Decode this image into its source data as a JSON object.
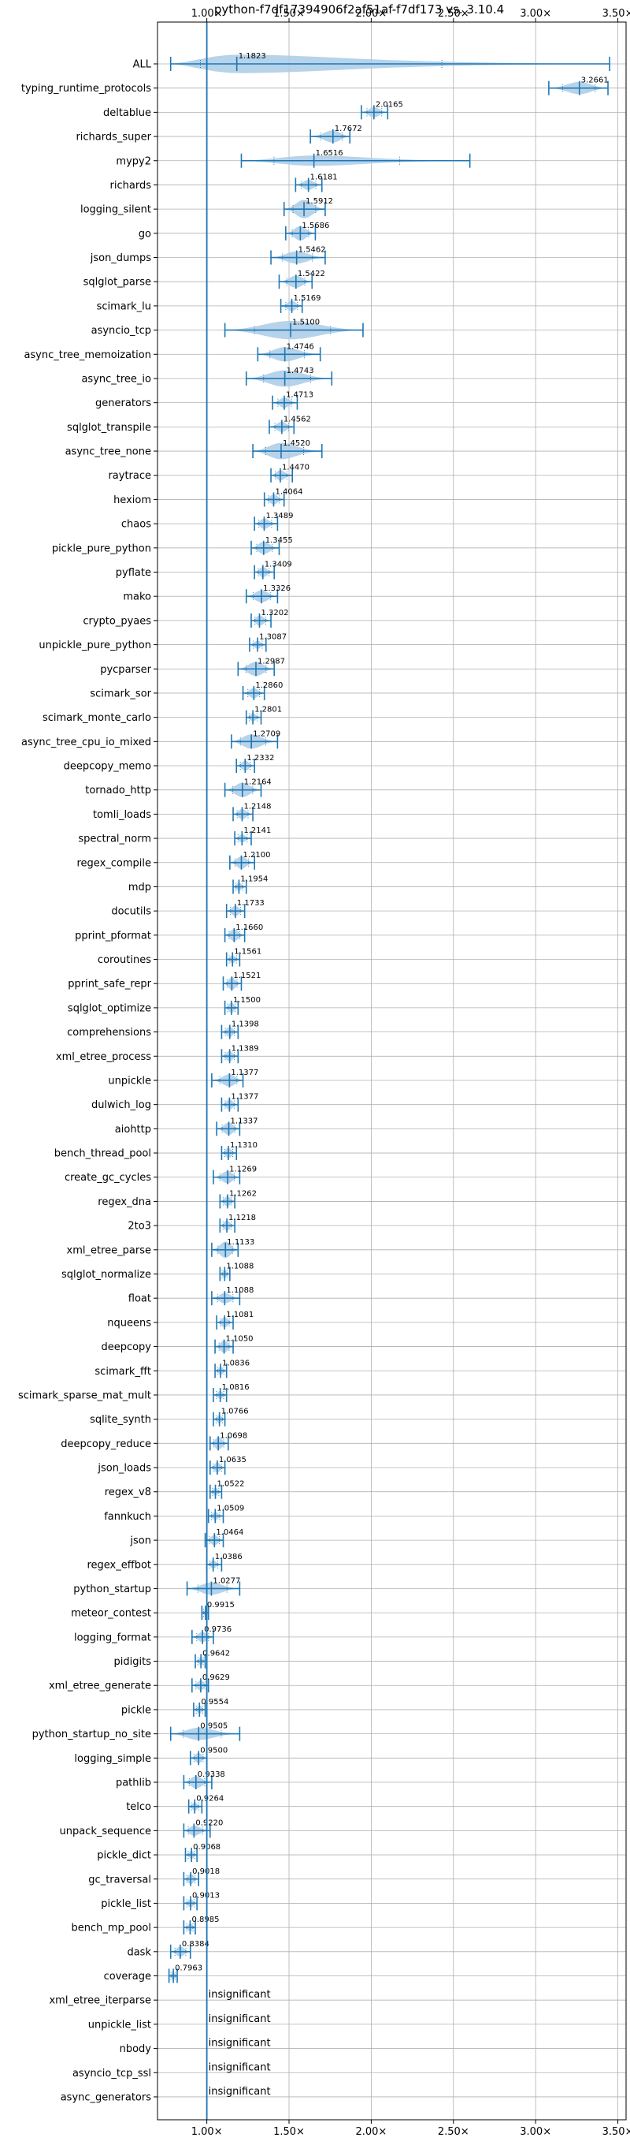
{
  "chart_data": {
    "type": "violin",
    "title": "python-f7df17394906f2af51af-f7df173 vs. 3.10.4",
    "xlim": [
      0.7,
      3.55
    ],
    "xticks": [
      1.0,
      1.5,
      2.0,
      2.5,
      3.0,
      3.5
    ],
    "xtick_labels": [
      "1.00×",
      "1.50×",
      "2.00×",
      "2.50×",
      "3.00×",
      "3.50×"
    ],
    "grid": true,
    "reference_line": 1.0,
    "colors": {
      "violin": "#a9cbe6",
      "line": "#1f77b4",
      "grid": "#b0b0b0"
    },
    "items": [
      {
        "name": "ALL",
        "label": "1.1823",
        "value": 1.1823,
        "min": 0.78,
        "max": 3.45,
        "width": 0.9
      },
      {
        "name": "typing_runtime_protocols",
        "label": "3.2661",
        "value": 3.2661,
        "min": 3.08,
        "max": 3.44,
        "width": 0.6
      },
      {
        "name": "deltablue",
        "label": "2.0165",
        "value": 2.0165,
        "min": 1.94,
        "max": 2.1,
        "width": 0.5
      },
      {
        "name": "richards_super",
        "label": "1.7672",
        "value": 1.7672,
        "min": 1.63,
        "max": 1.87,
        "width": 0.6
      },
      {
        "name": "mypy2",
        "label": "1.6516",
        "value": 1.6516,
        "min": 1.21,
        "max": 2.6,
        "width": 0.5
      },
      {
        "name": "richards",
        "label": "1.6181",
        "value": 1.6181,
        "min": 1.54,
        "max": 1.7,
        "width": 0.5
      },
      {
        "name": "logging_silent",
        "label": "1.5912",
        "value": 1.5912,
        "min": 1.47,
        "max": 1.72,
        "width": 0.9
      },
      {
        "name": "go",
        "label": "1.5686",
        "value": 1.5686,
        "min": 1.48,
        "max": 1.66,
        "width": 0.7
      },
      {
        "name": "json_dumps",
        "label": "1.5462",
        "value": 1.5462,
        "min": 1.39,
        "max": 1.72,
        "width": 0.6
      },
      {
        "name": "sqlglot_parse",
        "label": "1.5422",
        "value": 1.5422,
        "min": 1.44,
        "max": 1.64,
        "width": 0.6
      },
      {
        "name": "scimark_lu",
        "label": "1.5169",
        "value": 1.5169,
        "min": 1.45,
        "max": 1.58,
        "width": 0.5
      },
      {
        "name": "asyncio_tcp",
        "label": "1.5100",
        "value": 1.51,
        "min": 1.11,
        "max": 1.95,
        "width": 0.9
      },
      {
        "name": "async_tree_memoization",
        "label": "1.4746",
        "value": 1.4746,
        "min": 1.31,
        "max": 1.69,
        "width": 0.7
      },
      {
        "name": "async_tree_io",
        "label": "1.4743",
        "value": 1.4743,
        "min": 1.24,
        "max": 1.76,
        "width": 0.8
      },
      {
        "name": "generators",
        "label": "1.4713",
        "value": 1.4713,
        "min": 1.4,
        "max": 1.55,
        "width": 0.5
      },
      {
        "name": "sqlglot_transpile",
        "label": "1.4562",
        "value": 1.4562,
        "min": 1.38,
        "max": 1.53,
        "width": 0.5
      },
      {
        "name": "async_tree_none",
        "label": "1.4520",
        "value": 1.452,
        "min": 1.28,
        "max": 1.7,
        "width": 0.8
      },
      {
        "name": "raytrace",
        "label": "1.4470",
        "value": 1.447,
        "min": 1.39,
        "max": 1.52,
        "width": 0.5
      },
      {
        "name": "hexiom",
        "label": "1.4064",
        "value": 1.4064,
        "min": 1.35,
        "max": 1.47,
        "width": 0.5
      },
      {
        "name": "chaos",
        "label": "1.3489",
        "value": 1.3489,
        "min": 1.29,
        "max": 1.43,
        "width": 0.5
      },
      {
        "name": "pickle_pure_python",
        "label": "1.3455",
        "value": 1.3455,
        "min": 1.27,
        "max": 1.44,
        "width": 0.6
      },
      {
        "name": "pyflate",
        "label": "1.3409",
        "value": 1.3409,
        "min": 1.29,
        "max": 1.41,
        "width": 0.5
      },
      {
        "name": "mako",
        "label": "1.3326",
        "value": 1.3326,
        "min": 1.24,
        "max": 1.43,
        "width": 0.6
      },
      {
        "name": "crypto_pyaes",
        "label": "1.3202",
        "value": 1.3202,
        "min": 1.27,
        "max": 1.39,
        "width": 0.5
      },
      {
        "name": "unpickle_pure_python",
        "label": "1.3087",
        "value": 1.3087,
        "min": 1.26,
        "max": 1.36,
        "width": 0.4
      },
      {
        "name": "pycparser",
        "label": "1.2987",
        "value": 1.2987,
        "min": 1.19,
        "max": 1.41,
        "width": 0.7
      },
      {
        "name": "scimark_sor",
        "label": "1.2860",
        "value": 1.286,
        "min": 1.22,
        "max": 1.35,
        "width": 0.5
      },
      {
        "name": "scimark_monte_carlo",
        "label": "1.2801",
        "value": 1.2801,
        "min": 1.24,
        "max": 1.33,
        "width": 0.4
      },
      {
        "name": "async_tree_cpu_io_mixed",
        "label": "1.2709",
        "value": 1.2709,
        "min": 1.15,
        "max": 1.43,
        "width": 0.7
      },
      {
        "name": "deepcopy_memo",
        "label": "1.2332",
        "value": 1.2332,
        "min": 1.18,
        "max": 1.29,
        "width": 0.5
      },
      {
        "name": "tornado_http",
        "label": "1.2164",
        "value": 1.2164,
        "min": 1.11,
        "max": 1.33,
        "width": 0.7
      },
      {
        "name": "tomli_loads",
        "label": "1.2148",
        "value": 1.2148,
        "min": 1.16,
        "max": 1.28,
        "width": 0.5
      },
      {
        "name": "spectral_norm",
        "label": "1.2141",
        "value": 1.2141,
        "min": 1.17,
        "max": 1.27,
        "width": 0.4
      },
      {
        "name": "regex_compile",
        "label": "1.2100",
        "value": 1.21,
        "min": 1.14,
        "max": 1.29,
        "width": 0.6
      },
      {
        "name": "mdp",
        "label": "1.1954",
        "value": 1.1954,
        "min": 1.16,
        "max": 1.24,
        "width": 0.4
      },
      {
        "name": "docutils",
        "label": "1.1733",
        "value": 1.1733,
        "min": 1.12,
        "max": 1.23,
        "width": 0.5
      },
      {
        "name": "pprint_pformat",
        "label": "1.1660",
        "value": 1.166,
        "min": 1.11,
        "max": 1.23,
        "width": 0.6
      },
      {
        "name": "coroutines",
        "label": "1.1561",
        "value": 1.1561,
        "min": 1.12,
        "max": 1.2,
        "width": 0.4
      },
      {
        "name": "pprint_safe_repr",
        "label": "1.1521",
        "value": 1.1521,
        "min": 1.1,
        "max": 1.21,
        "width": 0.6
      },
      {
        "name": "sqlglot_optimize",
        "label": "1.1500",
        "value": 1.15,
        "min": 1.11,
        "max": 1.19,
        "width": 0.5
      },
      {
        "name": "comprehensions",
        "label": "1.1398",
        "value": 1.1398,
        "min": 1.09,
        "max": 1.19,
        "width": 0.5
      },
      {
        "name": "xml_etree_process",
        "label": "1.1389",
        "value": 1.1389,
        "min": 1.09,
        "max": 1.19,
        "width": 0.5
      },
      {
        "name": "unpickle",
        "label": "1.1377",
        "value": 1.1377,
        "min": 1.03,
        "max": 1.22,
        "width": 0.6
      },
      {
        "name": "dulwich_log",
        "label": "1.1377",
        "value": 1.1377,
        "min": 1.09,
        "max": 1.19,
        "width": 0.5
      },
      {
        "name": "aiohttp",
        "label": "1.1337",
        "value": 1.1337,
        "min": 1.06,
        "max": 1.2,
        "width": 0.6
      },
      {
        "name": "bench_thread_pool",
        "label": "1.1310",
        "value": 1.131,
        "min": 1.09,
        "max": 1.18,
        "width": 0.5
      },
      {
        "name": "create_gc_cycles",
        "label": "1.1269",
        "value": 1.1269,
        "min": 1.04,
        "max": 1.2,
        "width": 0.6
      },
      {
        "name": "regex_dna",
        "label": "1.1262",
        "value": 1.1262,
        "min": 1.08,
        "max": 1.17,
        "width": 0.5
      },
      {
        "name": "2to3",
        "label": "1.1218",
        "value": 1.1218,
        "min": 1.08,
        "max": 1.17,
        "width": 0.5
      },
      {
        "name": "xml_etree_parse",
        "label": "1.1133",
        "value": 1.1133,
        "min": 1.03,
        "max": 1.19,
        "width": 0.8
      },
      {
        "name": "sqlglot_normalize",
        "label": "1.1088",
        "value": 1.1088,
        "min": 1.08,
        "max": 1.14,
        "width": 0.4
      },
      {
        "name": "float",
        "label": "1.1088",
        "value": 1.1088,
        "min": 1.03,
        "max": 1.2,
        "width": 0.5
      },
      {
        "name": "nqueens",
        "label": "1.1081",
        "value": 1.1081,
        "min": 1.06,
        "max": 1.16,
        "width": 0.5
      },
      {
        "name": "deepcopy",
        "label": "1.1050",
        "value": 1.105,
        "min": 1.05,
        "max": 1.16,
        "width": 0.6
      },
      {
        "name": "scimark_fft",
        "label": "1.0836",
        "value": 1.0836,
        "min": 1.05,
        "max": 1.12,
        "width": 0.4
      },
      {
        "name": "scimark_sparse_mat_mult",
        "label": "1.0816",
        "value": 1.0816,
        "min": 1.04,
        "max": 1.12,
        "width": 0.4
      },
      {
        "name": "sqlite_synth",
        "label": "1.0766",
        "value": 1.0766,
        "min": 1.04,
        "max": 1.11,
        "width": 0.4
      },
      {
        "name": "deepcopy_reduce",
        "label": "1.0698",
        "value": 1.0698,
        "min": 1.02,
        "max": 1.13,
        "width": 0.6
      },
      {
        "name": "json_loads",
        "label": "1.0635",
        "value": 1.0635,
        "min": 1.02,
        "max": 1.11,
        "width": 0.5
      },
      {
        "name": "regex_v8",
        "label": "1.0522",
        "value": 1.0522,
        "min": 1.02,
        "max": 1.09,
        "width": 0.4
      },
      {
        "name": "fannkuch",
        "label": "1.0509",
        "value": 1.0509,
        "min": 1.01,
        "max": 1.1,
        "width": 0.4
      },
      {
        "name": "json",
        "label": "1.0464",
        "value": 1.0464,
        "min": 0.99,
        "max": 1.1,
        "width": 0.5
      },
      {
        "name": "regex_effbot",
        "label": "1.0386",
        "value": 1.0386,
        "min": 1.0,
        "max": 1.09,
        "width": 0.4
      },
      {
        "name": "python_startup",
        "label": "1.0277",
        "value": 1.0277,
        "min": 0.88,
        "max": 1.2,
        "width": 0.6
      },
      {
        "name": "meteor_contest",
        "label": "0.9915",
        "value": 0.9915,
        "min": 0.97,
        "max": 1.01,
        "width": 0.3
      },
      {
        "name": "logging_format",
        "label": "0.9736",
        "value": 0.9736,
        "min": 0.91,
        "max": 1.04,
        "width": 0.5
      },
      {
        "name": "pidigits",
        "label": "0.9642",
        "value": 0.9642,
        "min": 0.93,
        "max": 0.99,
        "width": 0.4
      },
      {
        "name": "xml_etree_generate",
        "label": "0.9629",
        "value": 0.9629,
        "min": 0.91,
        "max": 1.01,
        "width": 0.5
      },
      {
        "name": "pickle",
        "label": "0.9554",
        "value": 0.9554,
        "min": 0.92,
        "max": 0.99,
        "width": 0.4
      },
      {
        "name": "python_startup_no_site",
        "label": "0.9505",
        "value": 0.9505,
        "min": 0.78,
        "max": 1.2,
        "width": 0.6
      },
      {
        "name": "logging_simple",
        "label": "0.9500",
        "value": 0.95,
        "min": 0.9,
        "max": 1.0,
        "width": 0.5
      },
      {
        "name": "pathlib",
        "label": "0.9338",
        "value": 0.9338,
        "min": 0.86,
        "max": 1.03,
        "width": 0.6
      },
      {
        "name": "telco",
        "label": "0.9264",
        "value": 0.9264,
        "min": 0.89,
        "max": 0.97,
        "width": 0.4
      },
      {
        "name": "unpack_sequence",
        "label": "0.9220",
        "value": 0.922,
        "min": 0.86,
        "max": 1.02,
        "width": 0.5
      },
      {
        "name": "pickle_dict",
        "label": "0.9068",
        "value": 0.9068,
        "min": 0.87,
        "max": 0.94,
        "width": 0.4
      },
      {
        "name": "gc_traversal",
        "label": "0.9018",
        "value": 0.9018,
        "min": 0.86,
        "max": 0.95,
        "width": 0.5
      },
      {
        "name": "pickle_list",
        "label": "0.9013",
        "value": 0.9013,
        "min": 0.86,
        "max": 0.94,
        "width": 0.4
      },
      {
        "name": "bench_mp_pool",
        "label": "0.8985",
        "value": 0.8985,
        "min": 0.86,
        "max": 0.93,
        "width": 0.4
      },
      {
        "name": "dask",
        "label": "0.8384",
        "value": 0.8384,
        "min": 0.78,
        "max": 0.9,
        "width": 0.5
      },
      {
        "name": "coverage",
        "label": "0.7963",
        "value": 0.7963,
        "min": 0.77,
        "max": 0.82,
        "width": 0.4
      },
      {
        "name": "xml_etree_iterparse",
        "label": "insignificant",
        "insignificant": true
      },
      {
        "name": "unpickle_list",
        "label": "insignificant",
        "insignificant": true
      },
      {
        "name": "nbody",
        "label": "insignificant",
        "insignificant": true
      },
      {
        "name": "asyncio_tcp_ssl",
        "label": "insignificant",
        "insignificant": true
      },
      {
        "name": "async_generators",
        "label": "insignificant",
        "insignificant": true
      }
    ]
  }
}
